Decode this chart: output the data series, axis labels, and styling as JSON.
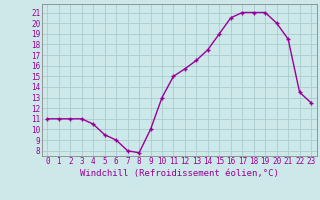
{
  "x": [
    0,
    1,
    2,
    3,
    4,
    5,
    6,
    7,
    8,
    9,
    10,
    11,
    12,
    13,
    14,
    15,
    16,
    17,
    18,
    19,
    20,
    21,
    22,
    23
  ],
  "y": [
    11,
    11,
    11,
    11,
    10.5,
    9.5,
    9,
    8,
    7.8,
    10,
    13,
    15,
    15.7,
    16.5,
    17.5,
    19,
    20.5,
    21,
    21,
    21,
    20,
    18.5,
    13.5,
    12.5
  ],
  "line_color": "#990099",
  "marker": "+",
  "bg_color": "#cce8e8",
  "grid_color": "#aacccc",
  "xlabel": "Windchill (Refroidissement éolien,°C)",
  "ylabel_ticks": [
    8,
    9,
    10,
    11,
    12,
    13,
    14,
    15,
    16,
    17,
    18,
    19,
    20,
    21
  ],
  "xlim": [
    -0.5,
    23.5
  ],
  "ylim": [
    7.5,
    21.8
  ],
  "xticks": [
    0,
    1,
    2,
    3,
    4,
    5,
    6,
    7,
    8,
    9,
    10,
    11,
    12,
    13,
    14,
    15,
    16,
    17,
    18,
    19,
    20,
    21,
    22,
    23
  ],
  "tick_fontsize": 5.5,
  "xlabel_fontsize": 6.5,
  "line_width": 1.0,
  "marker_size": 3.5,
  "spine_color": "#888888"
}
